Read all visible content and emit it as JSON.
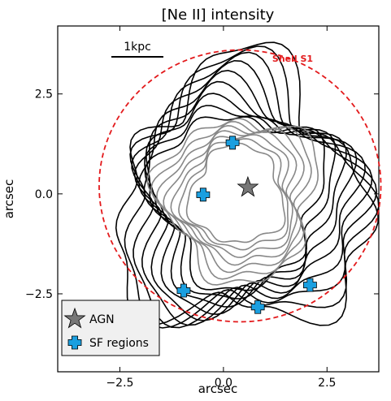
{
  "chart_data": {
    "type": "scatter",
    "title": "[Ne II] intensity",
    "xlabel": "arcsec",
    "ylabel": "arcsec",
    "xlim": [
      -4,
      3.75
    ],
    "ylim": [
      -4.45,
      4.2
    ],
    "xticks": [
      {
        "value": -2.5,
        "label": "−2.5"
      },
      {
        "value": 0,
        "label": "0.0"
      },
      {
        "value": 2.5,
        "label": "2.5"
      }
    ],
    "yticks": [
      {
        "value": -2.5,
        "label": "−2.5"
      },
      {
        "value": 0,
        "label": "0.0"
      },
      {
        "value": 2.5,
        "label": "2.5"
      }
    ],
    "series": [
      {
        "name": "AGN",
        "color": "#777777",
        "marker": "star",
        "x": [
          0.59
        ],
        "values": [
          0.16
        ]
      },
      {
        "name": "SF regions",
        "color": "#1a9fe0",
        "marker": "plus",
        "x": [
          0.22,
          -0.49,
          -0.96,
          0.83,
          2.09
        ],
        "values": [
          1.28,
          -0.02,
          -2.42,
          -2.83,
          -2.28
        ]
      }
    ],
    "shell": {
      "name": "Shell S1",
      "color": "#e31a1c",
      "center": [
        0.4,
        0.2
      ],
      "radius": 3.4
    },
    "scale_bar": "1kpc",
    "legend_position": "lower left"
  }
}
